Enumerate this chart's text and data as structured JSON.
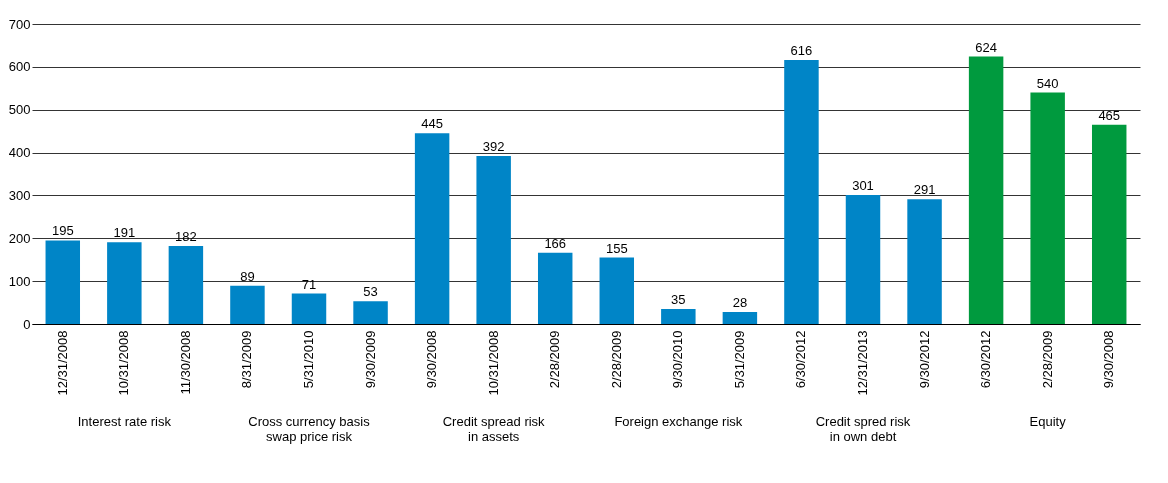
{
  "chart_data": {
    "type": "bar",
    "categories": [
      "12/31/2008",
      "10/31/2008",
      "11/30/2008",
      "8/31/2009",
      "5/31/2010",
      "9/30/2009",
      "9/30/2008",
      "10/31/2008",
      "2/28/2009",
      "2/28/2009",
      "9/30/2010",
      "5/31/2009",
      "6/30/2012",
      "12/31/2013",
      "9/30/2012",
      "6/30/2012",
      "2/28/2009",
      "9/30/2008"
    ],
    "values": [
      195,
      191,
      182,
      89,
      71,
      53,
      445,
      392,
      166,
      155,
      35,
      28,
      616,
      301,
      291,
      624,
      540,
      465
    ],
    "colors": [
      "#0085c7",
      "#0085c7",
      "#0085c7",
      "#0085c7",
      "#0085c7",
      "#0085c7",
      "#0085c7",
      "#0085c7",
      "#0085c7",
      "#0085c7",
      "#0085c7",
      "#0085c7",
      "#0085c7",
      "#0085c7",
      "#0085c7",
      "#009a3e",
      "#009a3e",
      "#009a3e"
    ],
    "annotations": [
      "Interest rate risk",
      "Cross currency basis\nswap price risk",
      "Credit spread risk\nin assets",
      "Foreign exchange risk",
      "Credit spred risk\nin own debt",
      "Equity"
    ],
    "ylim": [
      0,
      700
    ],
    "yticks": [
      0,
      100,
      200,
      300,
      400,
      500,
      600,
      700
    ],
    "grid": "y",
    "data_labels": true
  }
}
